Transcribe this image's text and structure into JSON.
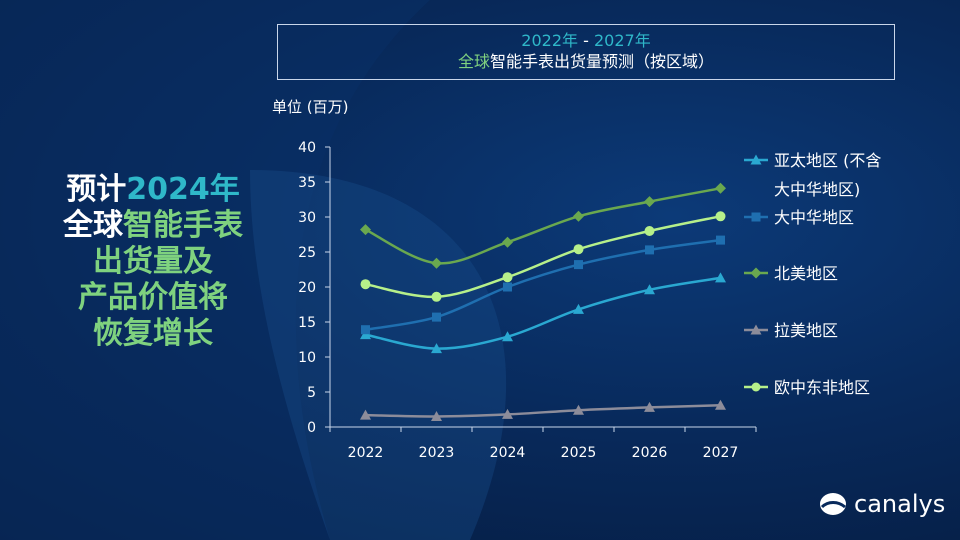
{
  "headline": {
    "line1_white": "预计",
    "line1_accent": "2024年",
    "line2_white": "全球",
    "line2_accent": "智能手表",
    "line3": "出货量及",
    "line4": "产品价值将",
    "line5": "恢复增长"
  },
  "title": {
    "line1_part1": "2022年",
    "line1_sep": " - ",
    "line1_part2": "2027年",
    "line2_accent": "全球",
    "line2_rest": "智能手表出货量预测（按区域）"
  },
  "unit": "单位 (百万)",
  "logo": {
    "text": "canalys"
  },
  "colors": {
    "accent_teal": "#2fb8c9",
    "accent_green": "#7fd27f",
    "apac": "#2aa8d1",
    "greater_china": "#1f6fb0",
    "north_america": "#6aa84f",
    "latam": "#8c8c9a",
    "emea": "#b6f08a"
  },
  "chart_data": {
    "type": "line",
    "x": [
      "2022",
      "2023",
      "2024",
      "2025",
      "2026",
      "2027"
    ],
    "ylim": [
      0,
      40
    ],
    "yticks": [
      "0",
      "5",
      "10",
      "15",
      "20",
      "25",
      "30",
      "35",
      "40"
    ],
    "grid": false,
    "legend_position": "right",
    "series": [
      {
        "name": "亚太地区 (不含大中华地区)",
        "legend_line1": "亚太地区 (不含",
        "legend_line2": "大中华地区)",
        "marker": "triangle",
        "color": "#2aa8d1",
        "values": [
          13.2,
          11.2,
          12.9,
          16.8,
          19.6,
          21.3
        ]
      },
      {
        "name": "大中华地区",
        "marker": "square",
        "color": "#1f6fb0",
        "values": [
          13.9,
          15.7,
          20.0,
          23.2,
          25.3,
          26.7
        ]
      },
      {
        "name": "北美地区",
        "marker": "diamond",
        "color": "#6aa84f",
        "values": [
          28.2,
          23.4,
          26.4,
          30.1,
          32.2,
          34.1
        ]
      },
      {
        "name": "拉美地区",
        "marker": "triangle",
        "color": "#8c8c9a",
        "values": [
          1.7,
          1.5,
          1.8,
          2.4,
          2.8,
          3.1
        ]
      },
      {
        "name": "欧中东非地区",
        "marker": "circle",
        "color": "#b6f08a",
        "values": [
          20.4,
          18.6,
          21.4,
          25.4,
          28.0,
          30.1
        ]
      }
    ]
  }
}
